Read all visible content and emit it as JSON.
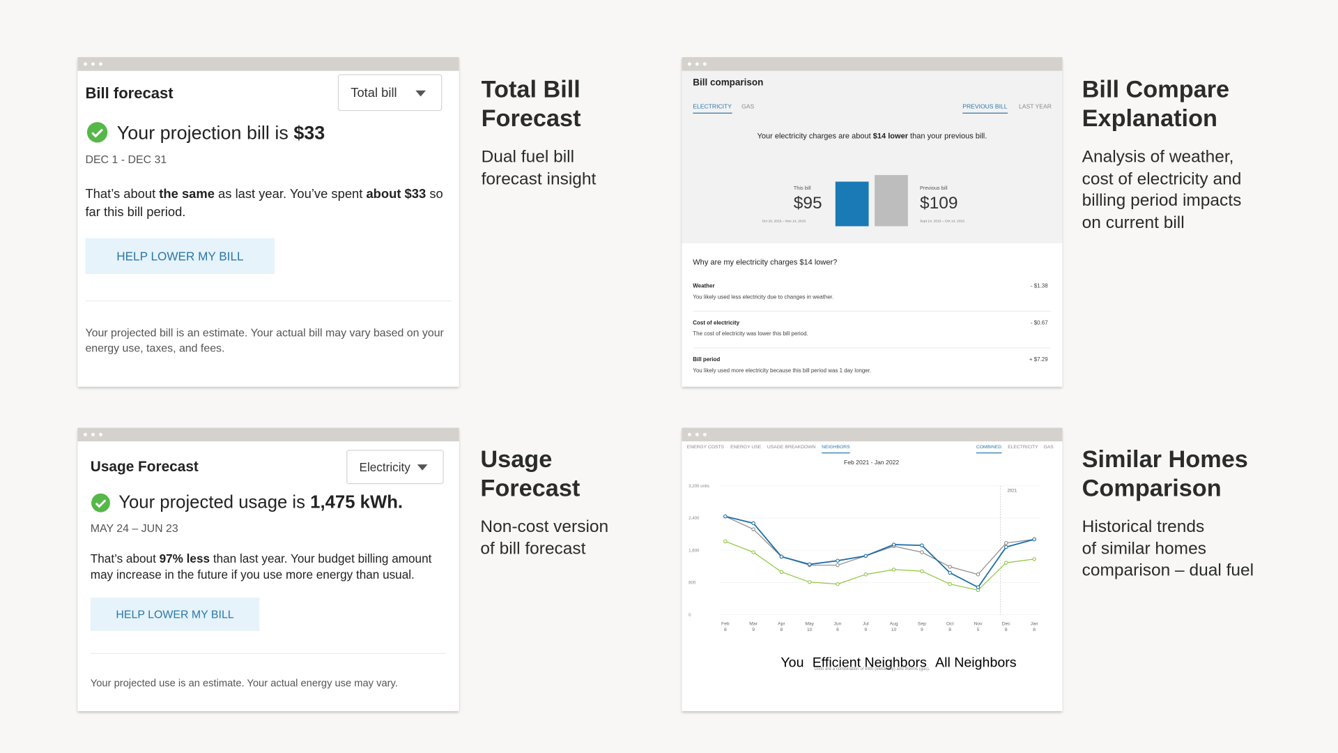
{
  "bill_forecast": {
    "title": "Bill forecast",
    "dropdown": "Total bill",
    "headline": [
      "Your projection bill is ",
      "$33"
    ],
    "period": "DEC 1 - DEC 31",
    "summary": [
      "That’s about ",
      "the same",
      " as last year. You’ve spent ",
      "about $33",
      " so far this bill period."
    ],
    "button": "HELP LOWER MY BILL",
    "note": "Your projected bill is an estimate. Your actual bill may vary based on your energy use, taxes, and fees."
  },
  "bill_comparison": {
    "title": "Bill comparison",
    "tabs": [
      "ELECTRICITY",
      "GAS"
    ],
    "modes": [
      "PREVIOUS BILL",
      "LAST YEAR"
    ],
    "sentence": [
      "Your electricity charges are about ",
      "$14 lower",
      " than your previous bill."
    ],
    "bars": [
      {
        "label": "This bill",
        "value": 95,
        "value_label": "$95",
        "dates": "Oct 15, 2015 – Nov 14, 2015",
        "color": "#1a7ab5"
      },
      {
        "label": "Previous bill",
        "value": 109,
        "value_label": "$109",
        "dates": "Sept 14, 2015 – Oct 14, 2015",
        "color": "#bdbdbd"
      }
    ],
    "question": "Why are my electricity charges $14 lower?",
    "reasons": [
      {
        "name": "Weather",
        "text": "You likely used less electricity due to changes in weather.",
        "amount": "- $1.38"
      },
      {
        "name": "Cost of electricity",
        "text": "The cost of electricity was lower this bill period.",
        "amount": "- $0.67"
      },
      {
        "name": "Bill period",
        "text": "You likely used more electricity because this bill period was 1 day longer.",
        "amount": "+ $7.29"
      }
    ]
  },
  "usage_forecast": {
    "title": "Usage Forecast",
    "dropdown": "Electricity",
    "headline": [
      "Your projected usage is ",
      "1,475 kWh."
    ],
    "period": "MAY 24 – JUN 23",
    "summary": [
      "That’s about ",
      "97% less",
      " than last year. Your budget billing amount may increase in the future if you use more energy than usual."
    ],
    "button": "HELP LOWER MY BILL",
    "note": "Your projected use is an estimate. Your actual energy use may vary."
  },
  "similar_homes": {
    "tabs": [
      "ENERGY COSTS",
      "ENERGY USE",
      "USAGE BREAKDOWN",
      "NEIGHBORS"
    ],
    "fuels": [
      "COMBINED",
      "ELECTRICITY",
      "GAS"
    ],
    "chart": {
      "type": "line",
      "title": "Feb 2021 - Jan 2022",
      "categories": [
        "Feb 8",
        "Mar 9",
        "Apr 8",
        "May 10",
        "Jun 8",
        "Jul 9",
        "Aug 10",
        "Sep 9",
        "Oct 8",
        "Nov 5",
        "Dec 8",
        "Jan 8"
      ],
      "series": [
        {
          "name": "You",
          "color": "#1f6fa8",
          "values": [
            2440,
            2270,
            1440,
            1250,
            1340,
            1460,
            1740,
            1720,
            1040,
            680,
            1680,
            1870
          ]
        },
        {
          "name": "Efficient Neighbors",
          "color": "#8dc63f",
          "values": [
            1820,
            1550,
            1060,
            810,
            760,
            1000,
            1120,
            1080,
            760,
            610,
            1290,
            1380
          ]
        },
        {
          "name": "All Neighbors",
          "color": "#8a8a8a",
          "values": [
            2440,
            2120,
            1440,
            1230,
            1230,
            1460,
            1700,
            1550,
            1190,
            1000,
            1780,
            1870
          ]
        }
      ],
      "ylim": [
        0,
        3200
      ],
      "yticks": [
        0,
        800,
        {
          "value": 1600,
          "label": "1,600"
        },
        {
          "value": 2400,
          "label": "2,400"
        },
        {
          "value": 3200,
          "label": "3,200 units"
        }
      ],
      "annotation": "2021",
      "note": "Units are a combination of kWh (electricity) and therms (gas)."
    }
  },
  "captions": [
    {
      "title": [
        "Total Bill",
        "Forecast"
      ],
      "text": [
        "Dual fuel bill",
        "forecast insight"
      ]
    },
    {
      "title": [
        "Bill Compare",
        "Explanation"
      ],
      "text": [
        "Analysis of weather,",
        "cost of electricity and",
        "billing period impacts",
        "on current bill"
      ]
    },
    {
      "title": [
        "Usage",
        "Forecast"
      ],
      "text": [
        "Non-cost version",
        "of bill forecast"
      ]
    },
    {
      "title": [
        "Similar Homes",
        "Comparison"
      ],
      "text": [
        "Historical trends",
        "of similar homes",
        "comparison – dual fuel"
      ]
    }
  ]
}
